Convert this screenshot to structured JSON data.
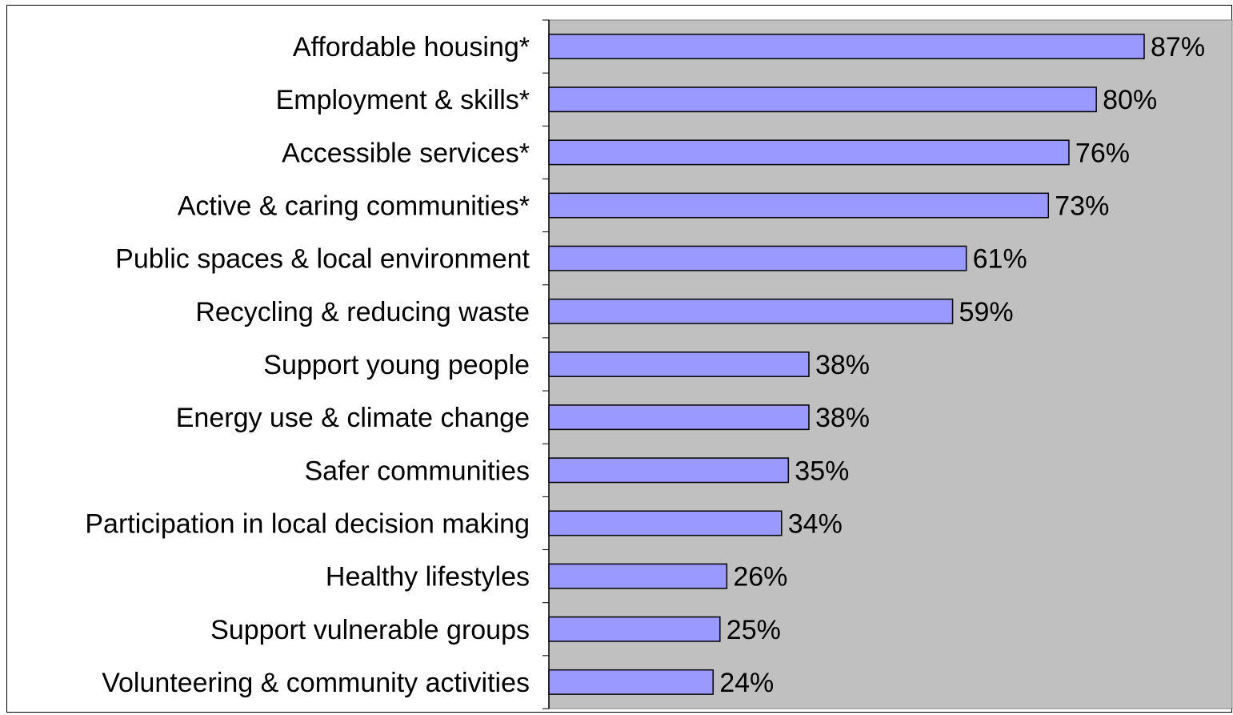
{
  "chart_data": {
    "type": "bar",
    "orientation": "horizontal",
    "categories": [
      "Affordable housing*",
      "Employment & skills*",
      "Accessible services*",
      "Active & caring communities*",
      "Public spaces & local environment",
      "Recycling & reducing waste",
      "Support young people",
      "Energy use & climate change",
      "Safer communities",
      "Participation in local decision making",
      "Healthy lifestyles",
      "Support vulnerable groups",
      "Volunteering & community activities"
    ],
    "values": [
      87,
      80,
      76,
      73,
      61,
      59,
      38,
      38,
      35,
      34,
      26,
      25,
      24
    ],
    "data_labels": [
      "87%",
      "80%",
      "76%",
      "73%",
      "61%",
      "59%",
      "38%",
      "38%",
      "35%",
      "34%",
      "26%",
      "25%",
      "24%"
    ],
    "title": "",
    "xlabel": "",
    "ylabel": "",
    "xlim": [
      0,
      100
    ],
    "grid": false,
    "legend": "none",
    "colors": {
      "bar_fill": "#9999ff",
      "bar_stroke": "#000000",
      "plot_background": "#c0c0c0",
      "page_background": "#ffffff"
    }
  }
}
